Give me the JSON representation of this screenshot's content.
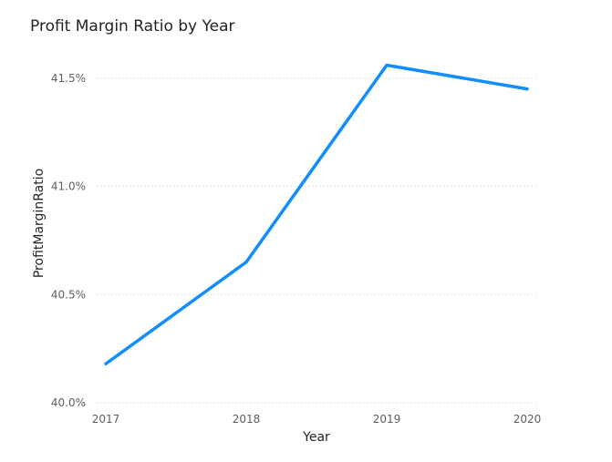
{
  "chart_data": {
    "type": "line",
    "title": "Profit Margin Ratio by Year",
    "xlabel": "Year",
    "ylabel": "ProfitMarginRatio",
    "categories": [
      "2017",
      "2018",
      "2019",
      "2020"
    ],
    "x_tick_labels": [
      "2017",
      "2018",
      "2019",
      "2020"
    ],
    "series": [
      {
        "values": [
          40.18,
          40.65,
          41.56,
          41.45
        ]
      }
    ],
    "ylim": [
      40.0,
      41.6
    ],
    "y_ticks": [
      40.0,
      40.5,
      41.0,
      41.5
    ],
    "y_tick_labels": [
      "40.0%",
      "40.5%",
      "41.0%",
      "41.5%"
    ],
    "grid": true,
    "legend": "none",
    "colors": {
      "line": "#118DFF",
      "gridline": "#d6d6d6",
      "tick_text": "#605e5c",
      "title_text": "#252423"
    }
  }
}
